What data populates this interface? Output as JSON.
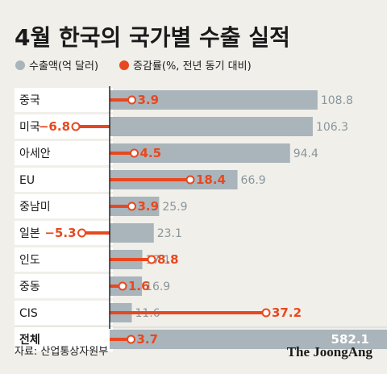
{
  "title": "4월 한국의 국가별 수출 실적",
  "source": "자료: 산업통상자원부",
  "brand": "The JoongAng",
  "colors": {
    "bar": "#a9b4bb",
    "bar_text": "#8a969c",
    "growth": "#e8481f",
    "axis": "#1a1a1a",
    "label_bg": "#ffffff",
    "separator": "#d4d4d0",
    "text": "#1a1a1a"
  },
  "chart_data": {
    "type": "bar",
    "series": [
      {
        "name": "수출액(억 달러)",
        "values": [
          108.8,
          106.3,
          94.4,
          66.9,
          25.9,
          23.1,
          17.1,
          16.9,
          11.6,
          582.1
        ]
      },
      {
        "name": "증감률(%, 전년 동기 대비)",
        "values": [
          3.9,
          -6.8,
          4.5,
          18.4,
          3.9,
          -5.3,
          8.8,
          1.6,
          37.2,
          3.7
        ]
      }
    ],
    "categories": [
      "중국",
      "미국",
      "아세안",
      "EU",
      "중남미",
      "일본",
      "인도",
      "중동",
      "CIS",
      "전체"
    ],
    "value_labels": [
      "108.8",
      "106.3",
      "94.4",
      "66.9",
      "25.9",
      "23.1",
      "17.1",
      "16.9",
      "11.6",
      "582.1"
    ],
    "growth_labels": [
      "3.9",
      "−6.8",
      "4.5",
      "18.4",
      "3.9",
      "−5.3",
      "8.8",
      "1.6",
      "37.2",
      "3.7"
    ]
  }
}
